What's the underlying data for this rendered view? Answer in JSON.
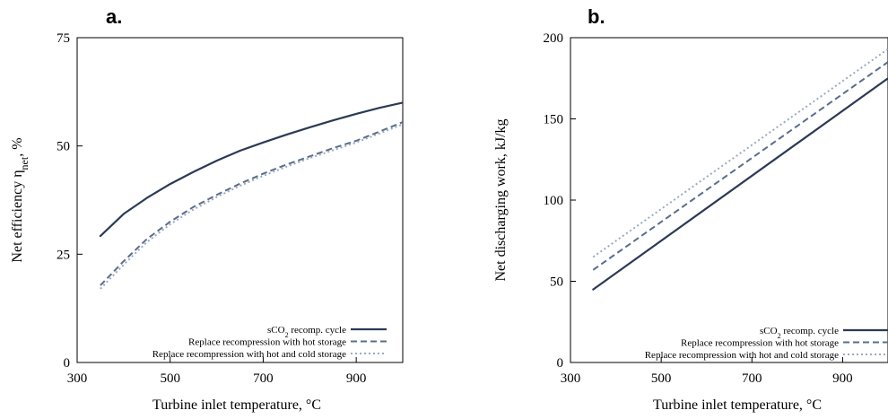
{
  "chart_data": [
    {
      "type": "line",
      "panel_label": "a.",
      "xlabel": "Turbine inlet temperature, °C",
      "ylabel": "Net efficiency η",
      "ylabel_sub": "net",
      "ylabel_suffix": ", %",
      "xlim": [
        300,
        1000
      ],
      "ylim": [
        0,
        75
      ],
      "xticks": [
        300,
        500,
        700,
        900
      ],
      "yticks": [
        0,
        25,
        50,
        75
      ],
      "legend_position": "bottom-right",
      "series": [
        {
          "name": "sCO₂ recomp. cycle",
          "name_main": "sCO",
          "name_sub": "2",
          "name_tail": " recomp. cycle",
          "color": "#2b3a55",
          "style": "solid",
          "x": [
            350,
            400,
            450,
            500,
            550,
            600,
            650,
            700,
            750,
            800,
            850,
            900,
            950,
            1000
          ],
          "y": [
            29.2,
            34.3,
            38.0,
            41.2,
            44.0,
            46.6,
            48.9,
            50.8,
            52.6,
            54.3,
            55.9,
            57.4,
            58.8,
            60.0
          ]
        },
        {
          "name": "Replace recompression with hot storage",
          "color": "#5a6d8c",
          "style": "dashed",
          "x": [
            350,
            400,
            450,
            500,
            550,
            600,
            650,
            700,
            750,
            800,
            850,
            900,
            950,
            1000
          ],
          "y": [
            17.8,
            23.4,
            28.5,
            32.5,
            35.9,
            38.7,
            41.3,
            43.6,
            45.7,
            47.6,
            49.5,
            51.2,
            53.3,
            55.5
          ]
        },
        {
          "name": "Replace recompression with hot and cold storage",
          "color": "#9aaac0",
          "style": "dotted",
          "x": [
            350,
            400,
            450,
            500,
            550,
            600,
            650,
            700,
            750,
            800,
            850,
            900,
            950,
            1000
          ],
          "y": [
            17.0,
            22.6,
            27.8,
            31.9,
            35.3,
            38.2,
            40.8,
            43.1,
            45.2,
            47.2,
            49.0,
            50.8,
            52.9,
            55.0
          ]
        }
      ]
    },
    {
      "type": "line",
      "panel_label": "b.",
      "xlabel": "Turbine inlet temperature, °C",
      "ylabel": "Net discharging work, kJ/kg",
      "xlim": [
        300,
        1000
      ],
      "ylim": [
        0,
        200
      ],
      "xticks": [
        300,
        500,
        700,
        900
      ],
      "yticks": [
        0,
        50,
        100,
        150,
        200
      ],
      "legend_position": "bottom-right",
      "series": [
        {
          "name": "sCO₂ recomp. cycle",
          "name_main": "sCO",
          "name_sub": "2",
          "name_tail": " recomp. cycle",
          "color": "#2b3a55",
          "style": "solid",
          "x": [
            350,
            1000
          ],
          "y": [
            45,
            175
          ]
        },
        {
          "name": "Replace recompression with hot storage",
          "color": "#5a6d8c",
          "style": "dashed",
          "x": [
            350,
            1000
          ],
          "y": [
            57,
            185
          ]
        },
        {
          "name": "Replace recompression with hot and cold storage",
          "color": "#9aaac0",
          "style": "dotted",
          "x": [
            350,
            1000
          ],
          "y": [
            65,
            193
          ]
        }
      ]
    }
  ]
}
